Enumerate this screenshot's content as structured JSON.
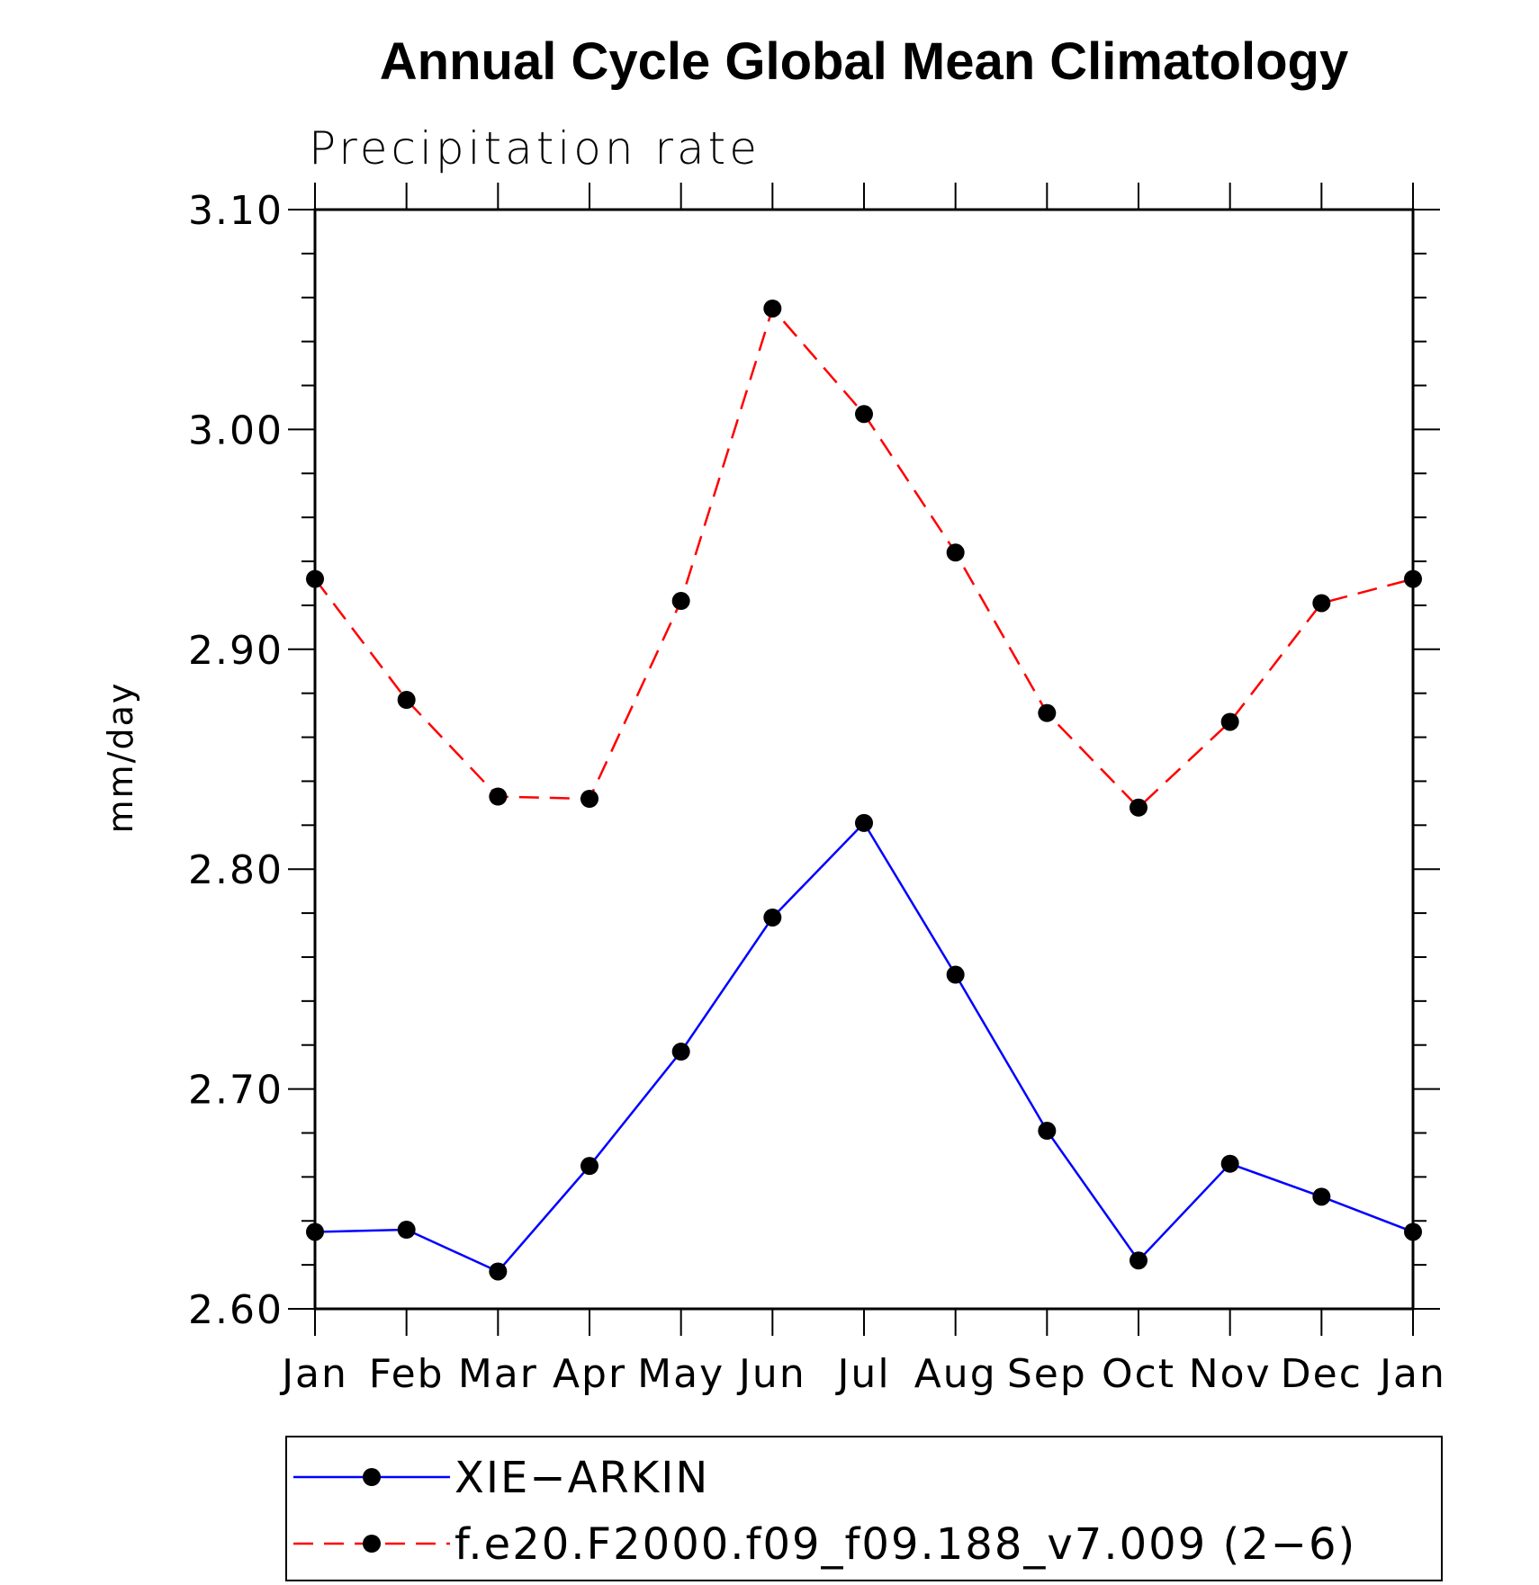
{
  "chart_data": {
    "type": "line",
    "title": "Annual Cycle Global Mean Climatology",
    "subtitle": "Precipitation rate",
    "xlabel": "",
    "ylabel": "mm/day",
    "categories": [
      "Jan",
      "Feb",
      "Mar",
      "Apr",
      "May",
      "Jun",
      "Jul",
      "Aug",
      "Sep",
      "Oct",
      "Nov",
      "Dec",
      "Jan"
    ],
    "ylim": [
      2.6,
      3.1
    ],
    "yticks": [
      "2.60",
      "2.70",
      "2.80",
      "2.90",
      "3.00",
      "3.10"
    ],
    "series": [
      {
        "name": "XIE−ARKIN",
        "color": "#0000ff",
        "style": "solid",
        "marker": "filled-circle",
        "values": [
          2.635,
          2.636,
          2.617,
          2.665,
          2.717,
          2.778,
          2.821,
          2.752,
          2.681,
          2.622,
          2.666,
          2.651,
          2.635
        ]
      },
      {
        "name": "f.e20.F2000.f09_f09.188_v7.009 (2−6)",
        "color": "#ff0000",
        "style": "dashed",
        "marker": "filled-circle",
        "values": [
          2.932,
          2.877,
          2.833,
          2.832,
          2.922,
          3.055,
          3.007,
          2.944,
          2.871,
          2.828,
          2.867,
          2.921,
          2.932
        ]
      }
    ],
    "legend_position": "bottom"
  }
}
